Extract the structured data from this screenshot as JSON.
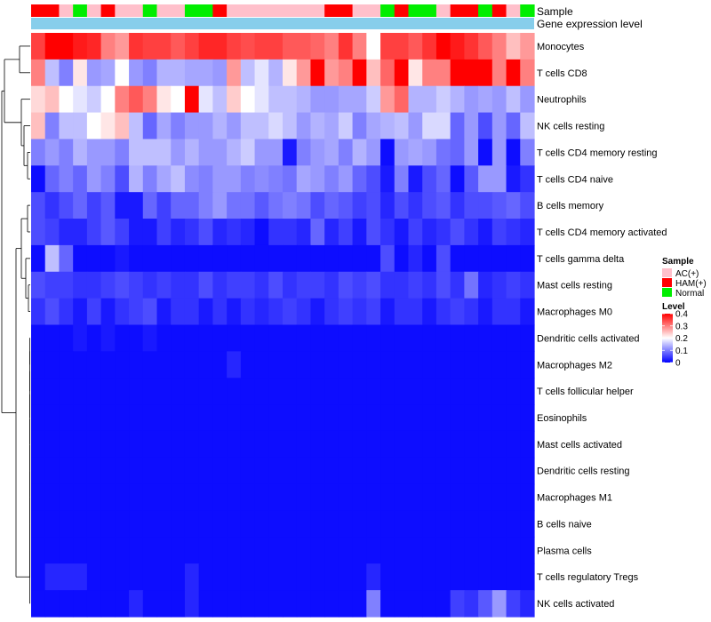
{
  "chart_data": {
    "type": "heatmap",
    "annotation_tracks": [
      "Sample",
      "Gene expression level"
    ],
    "rows": [
      "Monocytes",
      "T cells CD8",
      "Neutrophils",
      "NK cells resting",
      "T cells CD4 memory resting",
      "T cells CD4 naive",
      "B cells memory",
      "T cells CD4 memory activated",
      "T cells gamma delta",
      "Mast cells resting",
      "Macrophages M0",
      "Dendritic cells activated",
      "Macrophages M2",
      "T cells follicular helper",
      "Eosinophils",
      "Mast cells activated",
      "Dendritic cells resting",
      "Macrophages M1",
      "B cells naive",
      "Plasma cells",
      "T cells regulatory  Tregs",
      "NK cells activated"
    ],
    "sample_groups": [
      "HAM",
      "HAM",
      "AC",
      "N",
      "AC",
      "HAM",
      "AC",
      "AC",
      "N",
      "AC",
      "AC",
      "N",
      "N",
      "HAM",
      "AC",
      "AC",
      "AC",
      "AC",
      "AC",
      "AC",
      "AC",
      "HAM",
      "HAM",
      "AC",
      "AC",
      "N",
      "HAM",
      "N",
      "N",
      "AC",
      "HAM",
      "HAM",
      "N",
      "HAM",
      "AC",
      "N"
    ],
    "values": [
      [
        0.35,
        0.4,
        0.4,
        0.38,
        0.37,
        0.3,
        0.28,
        0.36,
        0.35,
        0.35,
        0.33,
        0.35,
        0.37,
        0.37,
        0.35,
        0.34,
        0.35,
        0.35,
        0.33,
        0.33,
        0.32,
        0.3,
        0.36,
        0.3,
        0.2,
        0.35,
        0.35,
        0.33,
        0.36,
        0.4,
        0.38,
        0.36,
        0.33,
        0.3,
        0.25,
        0.28
      ],
      [
        0.3,
        0.15,
        0.1,
        0.22,
        0.12,
        0.13,
        0.2,
        0.12,
        0.1,
        0.14,
        0.14,
        0.13,
        0.13,
        0.12,
        0.28,
        0.15,
        0.18,
        0.14,
        0.22,
        0.28,
        0.4,
        0.28,
        0.3,
        0.4,
        0.25,
        0.32,
        0.4,
        0.22,
        0.3,
        0.3,
        0.4,
        0.4,
        0.4,
        0.3,
        0.4,
        0.3
      ],
      [
        0.23,
        0.25,
        0.2,
        0.18,
        0.16,
        0.2,
        0.3,
        0.33,
        0.3,
        0.22,
        0.2,
        0.4,
        0.18,
        0.15,
        0.24,
        0.2,
        0.18,
        0.15,
        0.15,
        0.14,
        0.12,
        0.12,
        0.13,
        0.13,
        0.16,
        0.28,
        0.32,
        0.14,
        0.14,
        0.16,
        0.14,
        0.12,
        0.13,
        0.12,
        0.15,
        0.12
      ],
      [
        0.25,
        0.1,
        0.15,
        0.15,
        0.2,
        0.22,
        0.25,
        0.15,
        0.08,
        0.13,
        0.1,
        0.12,
        0.12,
        0.14,
        0.12,
        0.15,
        0.15,
        0.17,
        0.15,
        0.12,
        0.14,
        0.13,
        0.16,
        0.1,
        0.13,
        0.14,
        0.15,
        0.12,
        0.17,
        0.17,
        0.08,
        0.12,
        0.06,
        0.12,
        0.08,
        0.15
      ],
      [
        0.1,
        0.12,
        0.1,
        0.14,
        0.12,
        0.12,
        0.1,
        0.15,
        0.15,
        0.15,
        0.12,
        0.14,
        0.12,
        0.12,
        0.14,
        0.16,
        0.12,
        0.12,
        0.02,
        0.1,
        0.12,
        0.13,
        0.1,
        0.14,
        0.12,
        0.01,
        0.12,
        0.13,
        0.12,
        0.09,
        0.08,
        0.12,
        0.01,
        0.12,
        0.01,
        0.1
      ],
      [
        0.01,
        0.08,
        0.1,
        0.08,
        0.12,
        0.1,
        0.06,
        0.14,
        0.1,
        0.13,
        0.15,
        0.11,
        0.1,
        0.12,
        0.12,
        0.1,
        0.11,
        0.1,
        0.09,
        0.13,
        0.12,
        0.1,
        0.12,
        0.08,
        0.06,
        0.02,
        0.1,
        0.02,
        0.06,
        0.08,
        0.01,
        0.07,
        0.12,
        0.12,
        0.02,
        0.04
      ],
      [
        0.06,
        0.04,
        0.06,
        0.08,
        0.05,
        0.07,
        0.02,
        0.02,
        0.08,
        0.05,
        0.08,
        0.08,
        0.1,
        0.12,
        0.09,
        0.09,
        0.07,
        0.09,
        0.1,
        0.09,
        0.06,
        0.08,
        0.07,
        0.05,
        0.06,
        0.03,
        0.06,
        0.04,
        0.06,
        0.07,
        0.04,
        0.06,
        0.06,
        0.07,
        0.08,
        0.06
      ],
      [
        0.06,
        0.05,
        0.03,
        0.03,
        0.05,
        0.07,
        0.05,
        0.02,
        0.02,
        0.05,
        0.03,
        0.04,
        0.06,
        0.03,
        0.04,
        0.03,
        0.01,
        0.04,
        0.04,
        0.03,
        0.08,
        0.03,
        0.05,
        0.02,
        0.06,
        0.04,
        0.02,
        0.05,
        0.03,
        0.04,
        0.06,
        0.04,
        0.02,
        0.05,
        0.04,
        0.03
      ],
      [
        0.01,
        0.15,
        0.08,
        0.01,
        0.01,
        0.01,
        0.02,
        0.01,
        0.01,
        0.01,
        0.01,
        0.01,
        0.01,
        0.01,
        0.01,
        0.01,
        0.01,
        0.01,
        0.01,
        0.01,
        0.01,
        0.01,
        0.01,
        0.01,
        0.01,
        0.06,
        0.01,
        0.03,
        0.01,
        0.06,
        0.01,
        0.01,
        0.01,
        0.01,
        0.01,
        0.01
      ],
      [
        0.06,
        0.05,
        0.05,
        0.04,
        0.04,
        0.05,
        0.06,
        0.05,
        0.04,
        0.05,
        0.04,
        0.04,
        0.06,
        0.04,
        0.05,
        0.05,
        0.04,
        0.06,
        0.04,
        0.05,
        0.05,
        0.04,
        0.06,
        0.05,
        0.06,
        0.04,
        0.04,
        0.05,
        0.04,
        0.06,
        0.04,
        0.09,
        0.03,
        0.04,
        0.05,
        0.04
      ],
      [
        0.04,
        0.06,
        0.04,
        0.02,
        0.05,
        0.02,
        0.04,
        0.05,
        0.06,
        0.02,
        0.04,
        0.04,
        0.02,
        0.04,
        0.02,
        0.04,
        0.03,
        0.04,
        0.05,
        0.04,
        0.02,
        0.04,
        0.05,
        0.04,
        0.05,
        0.02,
        0.04,
        0.04,
        0.02,
        0.04,
        0.05,
        0.04,
        0.02,
        0.04,
        0.04,
        0.02
      ],
      [
        0.01,
        0.01,
        0.01,
        0.02,
        0.01,
        0.02,
        0.01,
        0.01,
        0.02,
        0.01,
        0.01,
        0.01,
        0.01,
        0.01,
        0.01,
        0.01,
        0.01,
        0.01,
        0.01,
        0.01,
        0.01,
        0.01,
        0.01,
        0.01,
        0.01,
        0.01,
        0.01,
        0.01,
        0.01,
        0.01,
        0.01,
        0.01,
        0.01,
        0.01,
        0.01,
        0.01
      ],
      [
        0.01,
        0.01,
        0.01,
        0.01,
        0.01,
        0.01,
        0.01,
        0.01,
        0.01,
        0.01,
        0.01,
        0.01,
        0.01,
        0.01,
        0.03,
        0.01,
        0.01,
        0.01,
        0.01,
        0.01,
        0.01,
        0.01,
        0.01,
        0.01,
        0.01,
        0.01,
        0.01,
        0.01,
        0.01,
        0.01,
        0.01,
        0.01,
        0.01,
        0.01,
        0.01,
        0.01
      ],
      [
        0.01,
        0.01,
        0.01,
        0.01,
        0.01,
        0.01,
        0.01,
        0.01,
        0.01,
        0.01,
        0.01,
        0.01,
        0.01,
        0.01,
        0.01,
        0.01,
        0.01,
        0.01,
        0.01,
        0.01,
        0.01,
        0.01,
        0.01,
        0.01,
        0.01,
        0.01,
        0.01,
        0.01,
        0.01,
        0.01,
        0.01,
        0.01,
        0.01,
        0.01,
        0.01,
        0.01
      ],
      [
        0.01,
        0.01,
        0.01,
        0.01,
        0.01,
        0.01,
        0.01,
        0.01,
        0.01,
        0.01,
        0.01,
        0.01,
        0.01,
        0.01,
        0.01,
        0.01,
        0.01,
        0.01,
        0.01,
        0.01,
        0.01,
        0.01,
        0.01,
        0.01,
        0.01,
        0.01,
        0.01,
        0.01,
        0.01,
        0.01,
        0.01,
        0.01,
        0.01,
        0.01,
        0.01,
        0.01
      ],
      [
        0.01,
        0.01,
        0.01,
        0.01,
        0.01,
        0.01,
        0.01,
        0.01,
        0.01,
        0.01,
        0.01,
        0.01,
        0.01,
        0.01,
        0.01,
        0.01,
        0.01,
        0.01,
        0.01,
        0.01,
        0.01,
        0.01,
        0.01,
        0.01,
        0.01,
        0.01,
        0.01,
        0.01,
        0.01,
        0.01,
        0.01,
        0.01,
        0.01,
        0.01,
        0.01,
        0.01
      ],
      [
        0.01,
        0.01,
        0.01,
        0.01,
        0.01,
        0.01,
        0.01,
        0.01,
        0.01,
        0.01,
        0.01,
        0.01,
        0.01,
        0.01,
        0.01,
        0.01,
        0.01,
        0.01,
        0.01,
        0.01,
        0.01,
        0.01,
        0.01,
        0.01,
        0.01,
        0.01,
        0.01,
        0.01,
        0.01,
        0.01,
        0.01,
        0.01,
        0.01,
        0.01,
        0.01,
        0.01
      ],
      [
        0.01,
        0.01,
        0.01,
        0.01,
        0.01,
        0.01,
        0.01,
        0.01,
        0.01,
        0.01,
        0.01,
        0.01,
        0.01,
        0.01,
        0.01,
        0.01,
        0.01,
        0.01,
        0.01,
        0.01,
        0.01,
        0.01,
        0.01,
        0.01,
        0.01,
        0.01,
        0.01,
        0.01,
        0.01,
        0.01,
        0.01,
        0.01,
        0.01,
        0.01,
        0.01,
        0.01
      ],
      [
        0.01,
        0.01,
        0.01,
        0.01,
        0.01,
        0.01,
        0.01,
        0.01,
        0.01,
        0.01,
        0.01,
        0.01,
        0.01,
        0.01,
        0.01,
        0.01,
        0.01,
        0.01,
        0.01,
        0.01,
        0.01,
        0.01,
        0.01,
        0.01,
        0.01,
        0.01,
        0.01,
        0.01,
        0.01,
        0.01,
        0.01,
        0.01,
        0.01,
        0.01,
        0.01,
        0.01
      ],
      [
        0.01,
        0.01,
        0.01,
        0.01,
        0.01,
        0.01,
        0.01,
        0.01,
        0.01,
        0.01,
        0.01,
        0.01,
        0.01,
        0.01,
        0.01,
        0.01,
        0.01,
        0.01,
        0.01,
        0.01,
        0.01,
        0.01,
        0.01,
        0.01,
        0.01,
        0.01,
        0.01,
        0.01,
        0.01,
        0.01,
        0.01,
        0.01,
        0.01,
        0.01,
        0.01,
        0.01
      ],
      [
        0.01,
        0.03,
        0.03,
        0.03,
        0.01,
        0.01,
        0.01,
        0.01,
        0.01,
        0.01,
        0.01,
        0.03,
        0.01,
        0.01,
        0.01,
        0.01,
        0.01,
        0.01,
        0.01,
        0.01,
        0.01,
        0.01,
        0.01,
        0.01,
        0.03,
        0.01,
        0.01,
        0.01,
        0.01,
        0.01,
        0.01,
        0.01,
        0.01,
        0.01,
        0.01,
        0.01
      ],
      [
        0.01,
        0.01,
        0.01,
        0.01,
        0.01,
        0.01,
        0.01,
        0.03,
        0.01,
        0.01,
        0.01,
        0.03,
        0.01,
        0.01,
        0.01,
        0.01,
        0.01,
        0.01,
        0.01,
        0.01,
        0.01,
        0.01,
        0.01,
        0.01,
        0.1,
        0.01,
        0.01,
        0.01,
        0.01,
        0.01,
        0.05,
        0.04,
        0.07,
        0.12,
        0.05,
        0.03
      ]
    ],
    "scale": {
      "min": 0,
      "max": 0.4,
      "ticks": [
        "0.4",
        "0.3",
        "0.2",
        "0.1",
        "0"
      ]
    },
    "legends": {
      "sample": {
        "title": "Sample",
        "items": [
          {
            "key": "AC",
            "label": "AC(+)"
          },
          {
            "key": "HAM",
            "label": "HAM(+)"
          },
          {
            "key": "N",
            "label": "Normal"
          }
        ]
      },
      "level": {
        "title": "Level"
      }
    }
  },
  "colors": {
    "low": "#0000ff",
    "mid": "#ffffff",
    "high": "#ff0000",
    "AC": "#ffc0cb",
    "HAM": "#ff0000",
    "N": "#00ee00",
    "expression_bar": "#87ceeb",
    "dendrogram": "#000000"
  }
}
